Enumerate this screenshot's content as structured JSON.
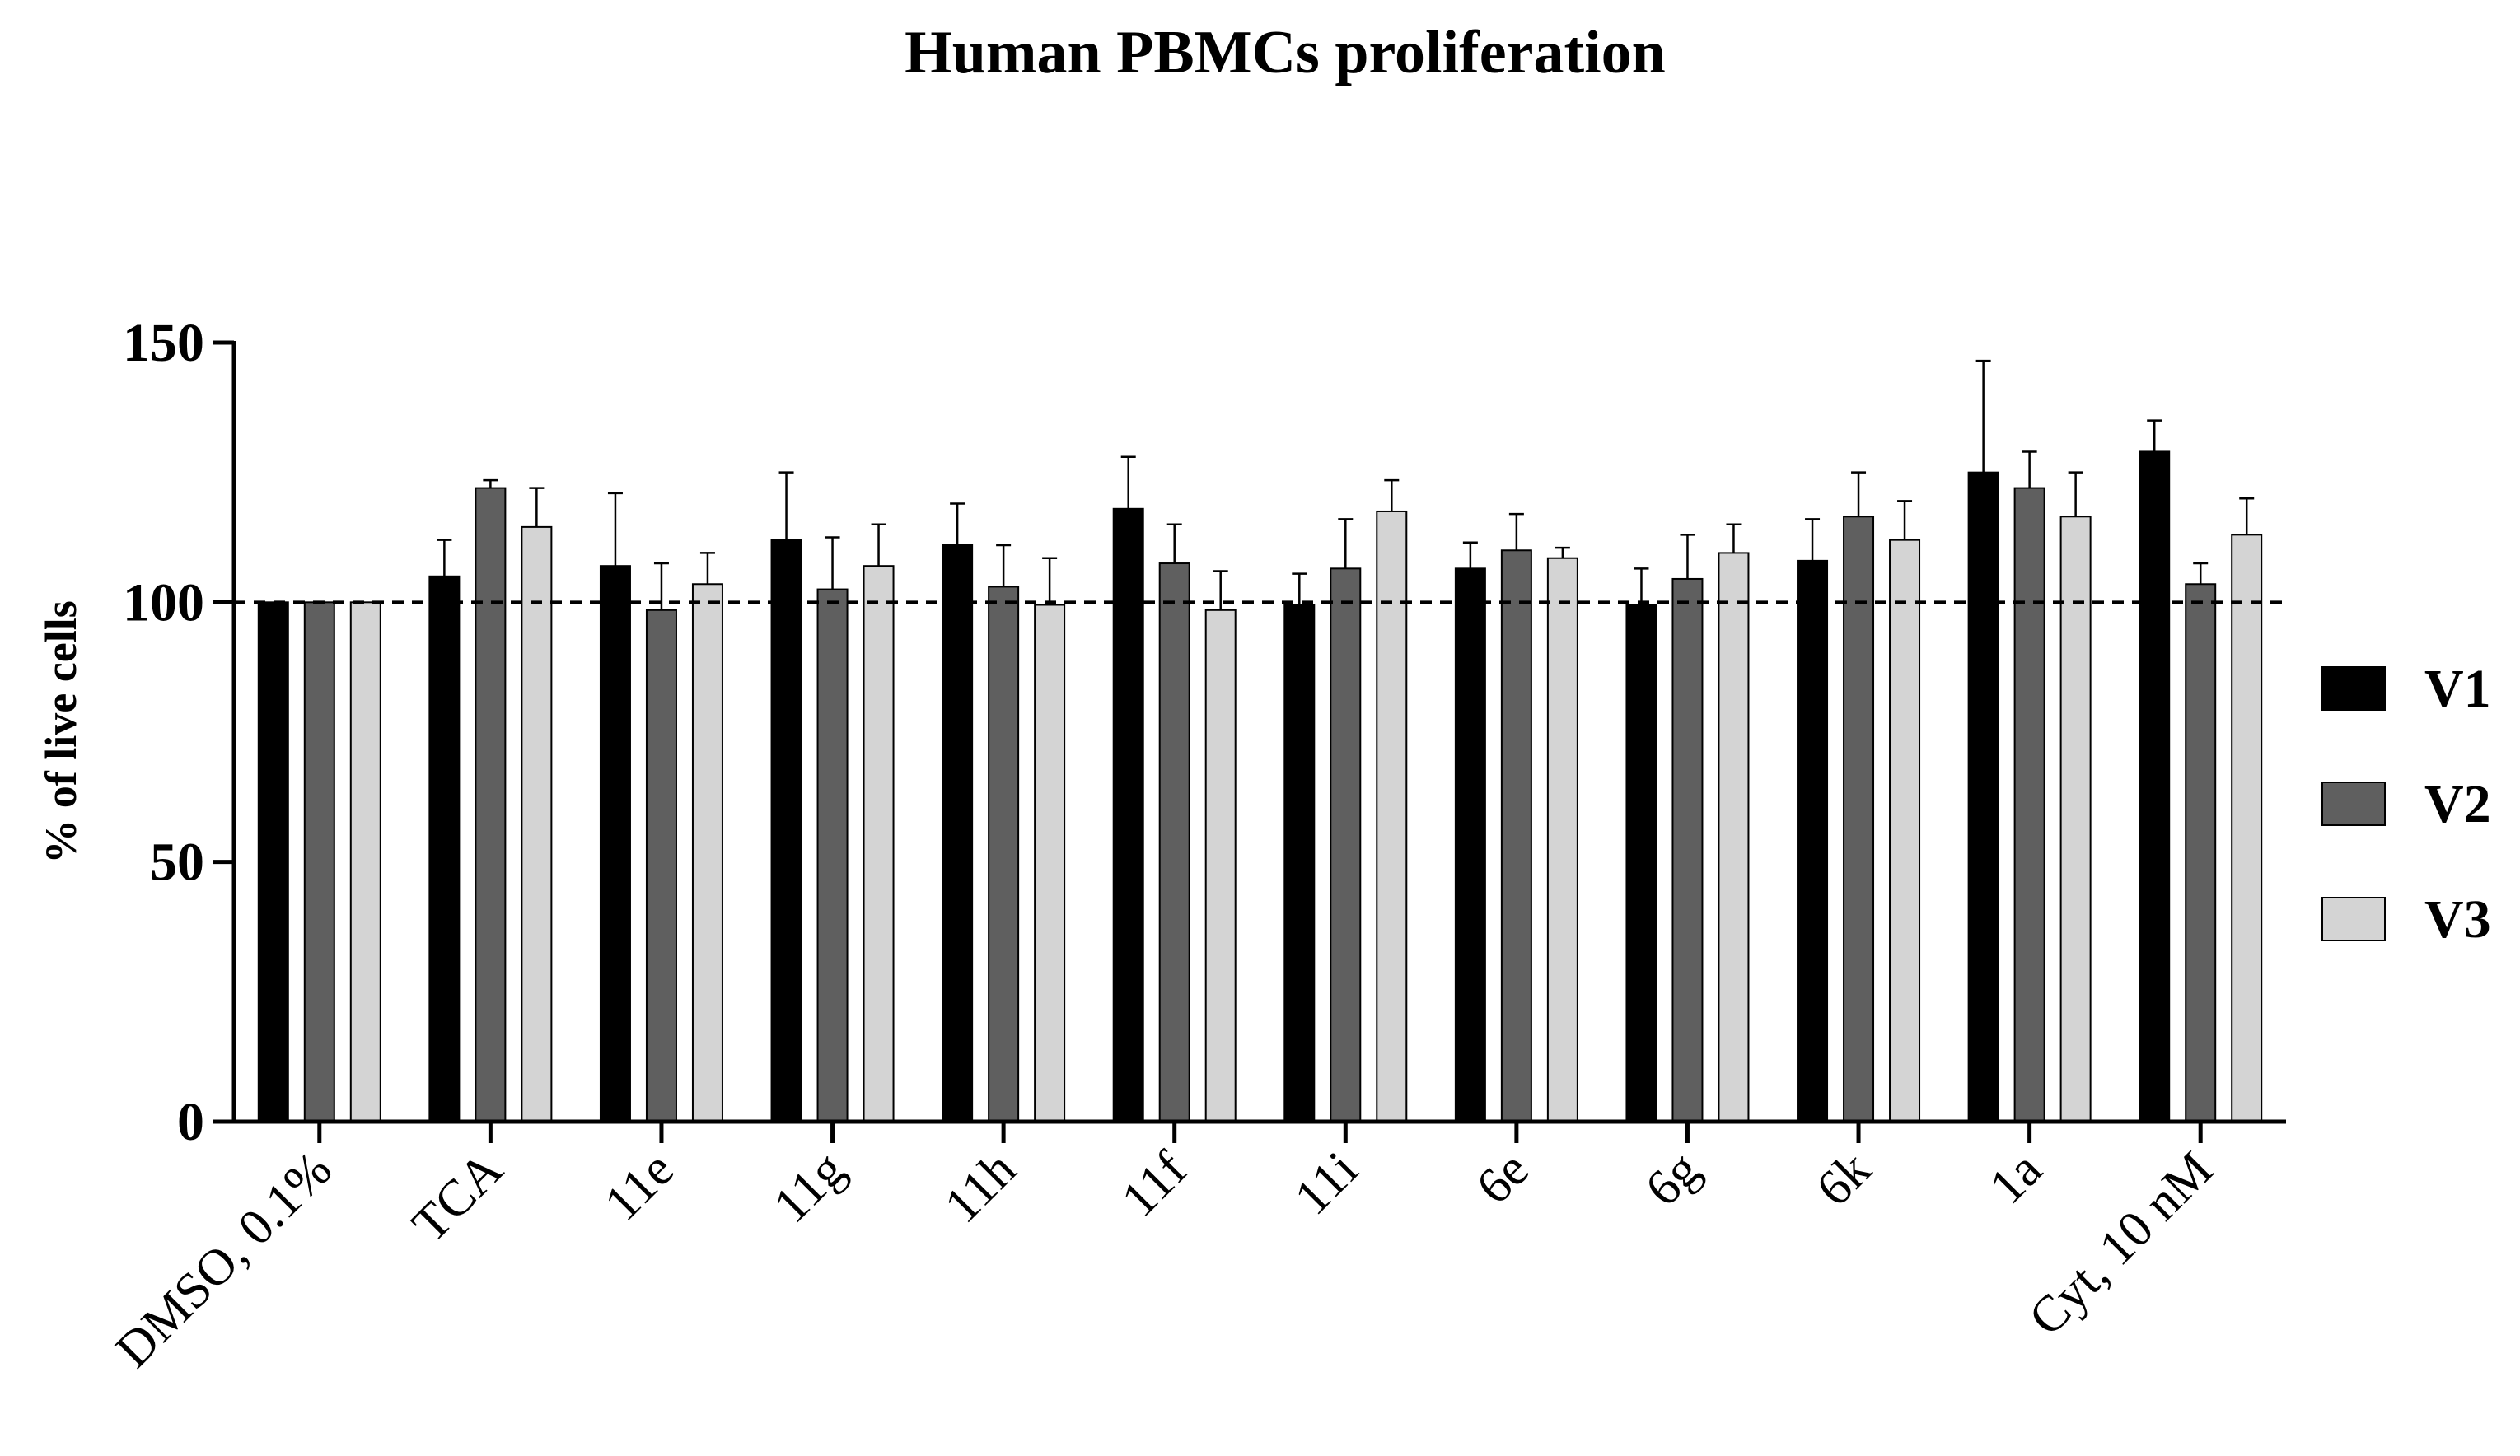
{
  "chart_data": {
    "type": "bar",
    "title": "Human PBMCs proliferation",
    "xlabel": "",
    "ylabel": "% of live cells",
    "ylim": [
      0,
      150
    ],
    "yticks": [
      0,
      50,
      100,
      150
    ],
    "reference_line": {
      "y": 100,
      "style": "dashed"
    },
    "legend": {
      "position": "right"
    },
    "grid": false,
    "categories": [
      "DMSO, 0.1%",
      "TCA",
      "11e",
      "11g",
      "11h",
      "11f",
      "11i",
      "6e",
      "6g",
      "6k",
      "1a",
      "Cyt, 10 nM"
    ],
    "series": [
      {
        "name": "V1",
        "color": "#000000",
        "values": [
          100,
          105,
          107,
          112,
          111,
          118,
          99.5,
          106.5,
          99.5,
          108,
          125,
          129
        ],
        "errors": [
          0,
          7,
          14,
          13,
          8,
          10,
          6,
          5,
          7,
          8,
          21.5,
          6
        ]
      },
      {
        "name": "V2",
        "color": "#5f5f5f",
        "values": [
          100,
          122,
          98.5,
          102.5,
          103,
          107.5,
          106.5,
          110,
          104.5,
          116.5,
          122,
          103.5
        ],
        "errors": [
          0,
          1.5,
          9,
          10,
          8,
          7.5,
          9.5,
          7,
          8.5,
          8.5,
          7,
          4
        ]
      },
      {
        "name": "V3",
        "color": "#d4d4d4",
        "values": [
          100,
          114.5,
          103.5,
          107,
          99.5,
          98.5,
          117.5,
          108.5,
          109.5,
          112,
          116.5,
          113
        ],
        "errors": [
          0,
          7.5,
          6,
          8,
          9,
          7.5,
          6,
          2,
          5.5,
          7.5,
          8.5,
          7
        ]
      }
    ]
  }
}
